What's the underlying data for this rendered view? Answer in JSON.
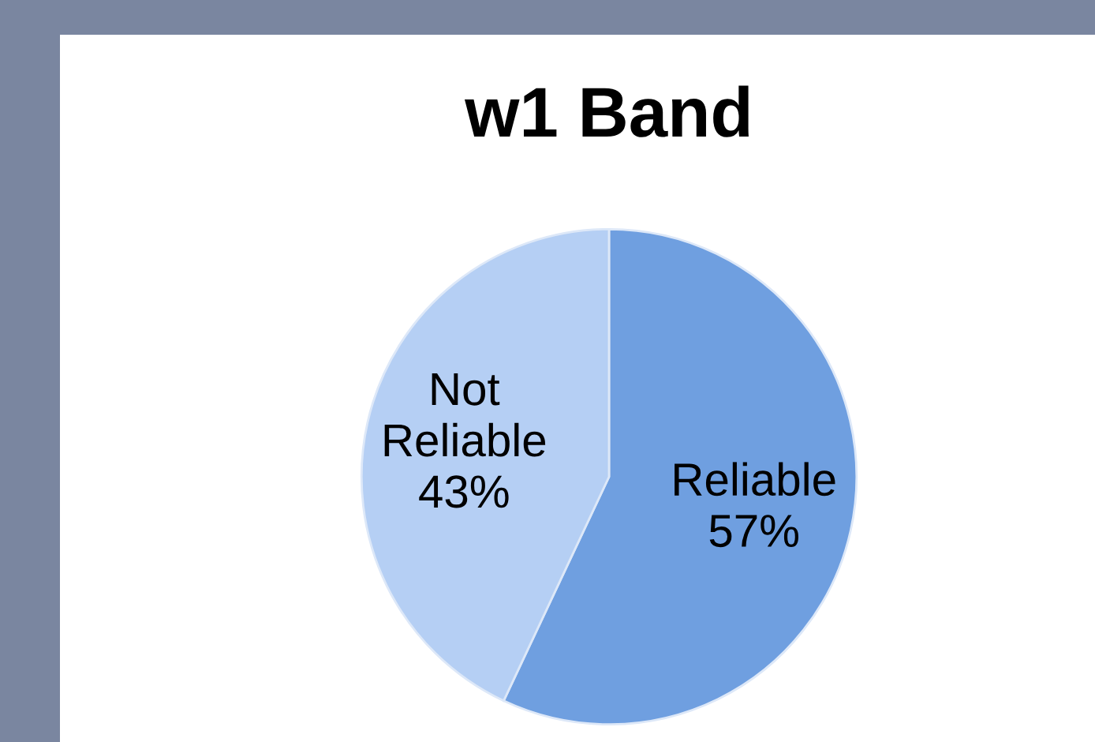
{
  "chart_data": {
    "type": "pie",
    "title": "w1 Band",
    "categories": [
      "Reliable",
      "Not\nReliable"
    ],
    "values": [
      57,
      43
    ],
    "value_labels": [
      "57%",
      "43%"
    ],
    "colors": [
      "#6f9fe0",
      "#b5cff4"
    ]
  }
}
